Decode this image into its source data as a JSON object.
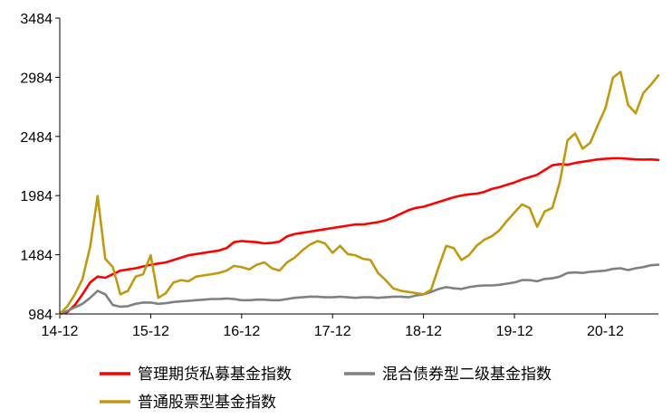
{
  "chart_data": {
    "type": "line",
    "title": "",
    "xlabel": "",
    "ylabel": "",
    "ylim": [
      984,
      3484
    ],
    "y_ticks": [
      "3484",
      "2984",
      "2484",
      "1984",
      "1484",
      "984"
    ],
    "x_range": [
      "2014-12",
      "2021-07"
    ],
    "x_ticks": [
      {
        "label": "14-12",
        "date": "2014-12"
      },
      {
        "label": "15-12",
        "date": "2015-12"
      },
      {
        "label": "16-12",
        "date": "2016-12"
      },
      {
        "label": "17-12",
        "date": "2017-12"
      },
      {
        "label": "18-12",
        "date": "2018-12"
      },
      {
        "label": "19-12",
        "date": "2019-12"
      },
      {
        "label": "20-12",
        "date": "2020-12"
      }
    ],
    "legend_position": "bottom",
    "grid": false,
    "series": [
      {
        "name": "管理期货私募基金指数",
        "color": "#ff0000",
        "points": [
          [
            "2014-12",
            984
          ],
          [
            "2015-01",
            1000
          ],
          [
            "2015-02",
            1060
          ],
          [
            "2015-03",
            1150
          ],
          [
            "2015-04",
            1250
          ],
          [
            "2015-05",
            1300
          ],
          [
            "2015-06",
            1290
          ],
          [
            "2015-07",
            1320
          ],
          [
            "2015-08",
            1350
          ],
          [
            "2015-09",
            1360
          ],
          [
            "2015-10",
            1370
          ],
          [
            "2015-11",
            1385
          ],
          [
            "2015-12",
            1400
          ],
          [
            "2016-01",
            1410
          ],
          [
            "2016-02",
            1420
          ],
          [
            "2016-03",
            1440
          ],
          [
            "2016-04",
            1460
          ],
          [
            "2016-05",
            1480
          ],
          [
            "2016-06",
            1490
          ],
          [
            "2016-07",
            1500
          ],
          [
            "2016-08",
            1510
          ],
          [
            "2016-09",
            1520
          ],
          [
            "2016-10",
            1540
          ],
          [
            "2016-11",
            1590
          ],
          [
            "2016-12",
            1600
          ],
          [
            "2017-01",
            1595
          ],
          [
            "2017-02",
            1590
          ],
          [
            "2017-03",
            1580
          ],
          [
            "2017-04",
            1585
          ],
          [
            "2017-05",
            1595
          ],
          [
            "2017-06",
            1640
          ],
          [
            "2017-07",
            1660
          ],
          [
            "2017-08",
            1670
          ],
          [
            "2017-09",
            1680
          ],
          [
            "2017-10",
            1690
          ],
          [
            "2017-11",
            1700
          ],
          [
            "2017-12",
            1710
          ],
          [
            "2018-01",
            1720
          ],
          [
            "2018-02",
            1730
          ],
          [
            "2018-03",
            1740
          ],
          [
            "2018-04",
            1740
          ],
          [
            "2018-05",
            1750
          ],
          [
            "2018-06",
            1760
          ],
          [
            "2018-07",
            1775
          ],
          [
            "2018-08",
            1800
          ],
          [
            "2018-09",
            1830
          ],
          [
            "2018-10",
            1860
          ],
          [
            "2018-11",
            1880
          ],
          [
            "2018-12",
            1890
          ],
          [
            "2019-01",
            1910
          ],
          [
            "2019-02",
            1930
          ],
          [
            "2019-03",
            1950
          ],
          [
            "2019-04",
            1970
          ],
          [
            "2019-05",
            1985
          ],
          [
            "2019-06",
            1995
          ],
          [
            "2019-07",
            2000
          ],
          [
            "2019-08",
            2015
          ],
          [
            "2019-09",
            2040
          ],
          [
            "2019-10",
            2055
          ],
          [
            "2019-11",
            2075
          ],
          [
            "2019-12",
            2095
          ],
          [
            "2020-01",
            2120
          ],
          [
            "2020-02",
            2140
          ],
          [
            "2020-03",
            2160
          ],
          [
            "2020-04",
            2200
          ],
          [
            "2020-05",
            2240
          ],
          [
            "2020-06",
            2250
          ],
          [
            "2020-07",
            2245
          ],
          [
            "2020-08",
            2260
          ],
          [
            "2020-09",
            2270
          ],
          [
            "2020-10",
            2280
          ],
          [
            "2020-11",
            2290
          ],
          [
            "2020-12",
            2295
          ],
          [
            "2021-01",
            2300
          ],
          [
            "2021-02",
            2300
          ],
          [
            "2021-03",
            2295
          ],
          [
            "2021-04",
            2290
          ],
          [
            "2021-05",
            2288
          ],
          [
            "2021-06",
            2290
          ],
          [
            "2021-07",
            2285
          ]
        ]
      },
      {
        "name": "混合债券型二级基金指数",
        "color": "#808080",
        "points": [
          [
            "2014-12",
            984
          ],
          [
            "2015-01",
            1010
          ],
          [
            "2015-02",
            1040
          ],
          [
            "2015-03",
            1070
          ],
          [
            "2015-04",
            1120
          ],
          [
            "2015-05",
            1180
          ],
          [
            "2015-06",
            1150
          ],
          [
            "2015-07",
            1060
          ],
          [
            "2015-08",
            1045
          ],
          [
            "2015-09",
            1050
          ],
          [
            "2015-10",
            1070
          ],
          [
            "2015-11",
            1080
          ],
          [
            "2015-12",
            1080
          ],
          [
            "2016-01",
            1070
          ],
          [
            "2016-02",
            1075
          ],
          [
            "2016-03",
            1085
          ],
          [
            "2016-04",
            1090
          ],
          [
            "2016-05",
            1095
          ],
          [
            "2016-06",
            1100
          ],
          [
            "2016-07",
            1105
          ],
          [
            "2016-08",
            1110
          ],
          [
            "2016-09",
            1110
          ],
          [
            "2016-10",
            1115
          ],
          [
            "2016-11",
            1110
          ],
          [
            "2016-12",
            1100
          ],
          [
            "2017-01",
            1100
          ],
          [
            "2017-02",
            1105
          ],
          [
            "2017-03",
            1105
          ],
          [
            "2017-04",
            1100
          ],
          [
            "2017-05",
            1100
          ],
          [
            "2017-06",
            1110
          ],
          [
            "2017-07",
            1120
          ],
          [
            "2017-08",
            1125
          ],
          [
            "2017-09",
            1130
          ],
          [
            "2017-10",
            1130
          ],
          [
            "2017-11",
            1125
          ],
          [
            "2017-12",
            1125
          ],
          [
            "2018-01",
            1130
          ],
          [
            "2018-02",
            1125
          ],
          [
            "2018-03",
            1120
          ],
          [
            "2018-04",
            1125
          ],
          [
            "2018-05",
            1125
          ],
          [
            "2018-06",
            1120
          ],
          [
            "2018-07",
            1125
          ],
          [
            "2018-08",
            1130
          ],
          [
            "2018-09",
            1130
          ],
          [
            "2018-10",
            1125
          ],
          [
            "2018-11",
            1140
          ],
          [
            "2018-12",
            1150
          ],
          [
            "2019-01",
            1170
          ],
          [
            "2019-02",
            1195
          ],
          [
            "2019-03",
            1210
          ],
          [
            "2019-04",
            1200
          ],
          [
            "2019-05",
            1195
          ],
          [
            "2019-06",
            1210
          ],
          [
            "2019-07",
            1220
          ],
          [
            "2019-08",
            1225
          ],
          [
            "2019-09",
            1225
          ],
          [
            "2019-10",
            1230
          ],
          [
            "2019-11",
            1240
          ],
          [
            "2019-12",
            1250
          ],
          [
            "2020-01",
            1270
          ],
          [
            "2020-02",
            1270
          ],
          [
            "2020-03",
            1260
          ],
          [
            "2020-04",
            1280
          ],
          [
            "2020-05",
            1285
          ],
          [
            "2020-06",
            1300
          ],
          [
            "2020-07",
            1330
          ],
          [
            "2020-08",
            1335
          ],
          [
            "2020-09",
            1330
          ],
          [
            "2020-10",
            1340
          ],
          [
            "2020-11",
            1345
          ],
          [
            "2020-12",
            1350
          ],
          [
            "2021-01",
            1365
          ],
          [
            "2021-02",
            1370
          ],
          [
            "2021-03",
            1355
          ],
          [
            "2021-04",
            1370
          ],
          [
            "2021-05",
            1380
          ],
          [
            "2021-06",
            1395
          ],
          [
            "2021-07",
            1400
          ]
        ]
      },
      {
        "name": "普通股票型基金指数",
        "color": "#c09a0e",
        "points": [
          [
            "2014-12",
            984
          ],
          [
            "2015-01",
            1050
          ],
          [
            "2015-02",
            1150
          ],
          [
            "2015-03",
            1280
          ],
          [
            "2015-04",
            1550
          ],
          [
            "2015-05",
            1980
          ],
          [
            "2015-06",
            1450
          ],
          [
            "2015-07",
            1380
          ],
          [
            "2015-08",
            1150
          ],
          [
            "2015-09",
            1180
          ],
          [
            "2015-10",
            1300
          ],
          [
            "2015-11",
            1320
          ],
          [
            "2015-12",
            1480
          ],
          [
            "2016-01",
            1120
          ],
          [
            "2016-02",
            1160
          ],
          [
            "2016-03",
            1250
          ],
          [
            "2016-04",
            1270
          ],
          [
            "2016-05",
            1260
          ],
          [
            "2016-06",
            1300
          ],
          [
            "2016-07",
            1310
          ],
          [
            "2016-08",
            1320
          ],
          [
            "2016-09",
            1330
          ],
          [
            "2016-10",
            1350
          ],
          [
            "2016-11",
            1390
          ],
          [
            "2016-12",
            1380
          ],
          [
            "2017-01",
            1360
          ],
          [
            "2017-02",
            1400
          ],
          [
            "2017-03",
            1420
          ],
          [
            "2017-04",
            1370
          ],
          [
            "2017-05",
            1350
          ],
          [
            "2017-06",
            1420
          ],
          [
            "2017-07",
            1460
          ],
          [
            "2017-08",
            1520
          ],
          [
            "2017-09",
            1570
          ],
          [
            "2017-10",
            1600
          ],
          [
            "2017-11",
            1580
          ],
          [
            "2017-12",
            1500
          ],
          [
            "2018-01",
            1560
          ],
          [
            "2018-02",
            1490
          ],
          [
            "2018-03",
            1480
          ],
          [
            "2018-04",
            1450
          ],
          [
            "2018-05",
            1440
          ],
          [
            "2018-06",
            1330
          ],
          [
            "2018-07",
            1270
          ],
          [
            "2018-08",
            1200
          ],
          [
            "2018-09",
            1180
          ],
          [
            "2018-10",
            1170
          ],
          [
            "2018-11",
            1160
          ],
          [
            "2018-12",
            1150
          ],
          [
            "2019-01",
            1190
          ],
          [
            "2019-02",
            1380
          ],
          [
            "2019-03",
            1560
          ],
          [
            "2019-04",
            1540
          ],
          [
            "2019-05",
            1440
          ],
          [
            "2019-06",
            1480
          ],
          [
            "2019-07",
            1560
          ],
          [
            "2019-08",
            1610
          ],
          [
            "2019-09",
            1640
          ],
          [
            "2019-10",
            1690
          ],
          [
            "2019-11",
            1770
          ],
          [
            "2019-12",
            1840
          ],
          [
            "2020-01",
            1910
          ],
          [
            "2020-02",
            1880
          ],
          [
            "2020-03",
            1720
          ],
          [
            "2020-04",
            1850
          ],
          [
            "2020-05",
            1880
          ],
          [
            "2020-06",
            2100
          ],
          [
            "2020-07",
            2450
          ],
          [
            "2020-08",
            2510
          ],
          [
            "2020-09",
            2380
          ],
          [
            "2020-10",
            2430
          ],
          [
            "2020-11",
            2580
          ],
          [
            "2020-12",
            2720
          ],
          [
            "2021-01",
            2980
          ],
          [
            "2021-02",
            3030
          ],
          [
            "2021-03",
            2750
          ],
          [
            "2021-04",
            2680
          ],
          [
            "2021-05",
            2850
          ],
          [
            "2021-06",
            2920
          ],
          [
            "2021-07",
            3000
          ]
        ]
      }
    ]
  }
}
